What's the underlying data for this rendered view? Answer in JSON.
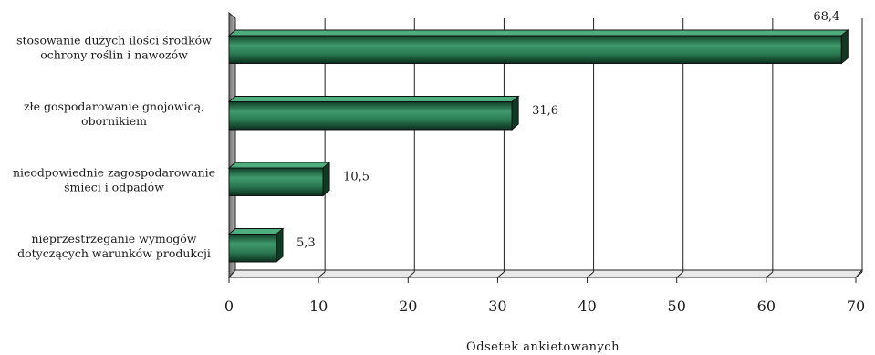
{
  "chart_data": {
    "type": "bar",
    "orientation": "horizontal",
    "categories": [
      [
        "stosowanie dużych ilości środków",
        "ochrony roślin i nawozów"
      ],
      [
        "złe gospodarowanie gnojowicą,",
        "obornikiem"
      ],
      [
        "nieodpowiednie zagospodarowanie",
        "śmieci i odpadów"
      ],
      [
        "nieprzestrzeganie wymogów",
        "dotyczących warunków produkcji"
      ]
    ],
    "values": [
      68.4,
      31.6,
      10.5,
      5.3
    ],
    "value_labels": [
      "68,4",
      "31,6",
      "10,5",
      "5,3"
    ],
    "xlabel": "Odsetek ankietowanych",
    "xlim": [
      0,
      70
    ],
    "xticks": [
      0,
      10,
      20,
      30,
      40,
      50,
      60,
      70
    ],
    "grid": "vertical",
    "bar_color": "#1f6b47",
    "bar_highlight": "#3f9a6c",
    "bar_shadow": "#0e3a24",
    "legend": "none"
  }
}
